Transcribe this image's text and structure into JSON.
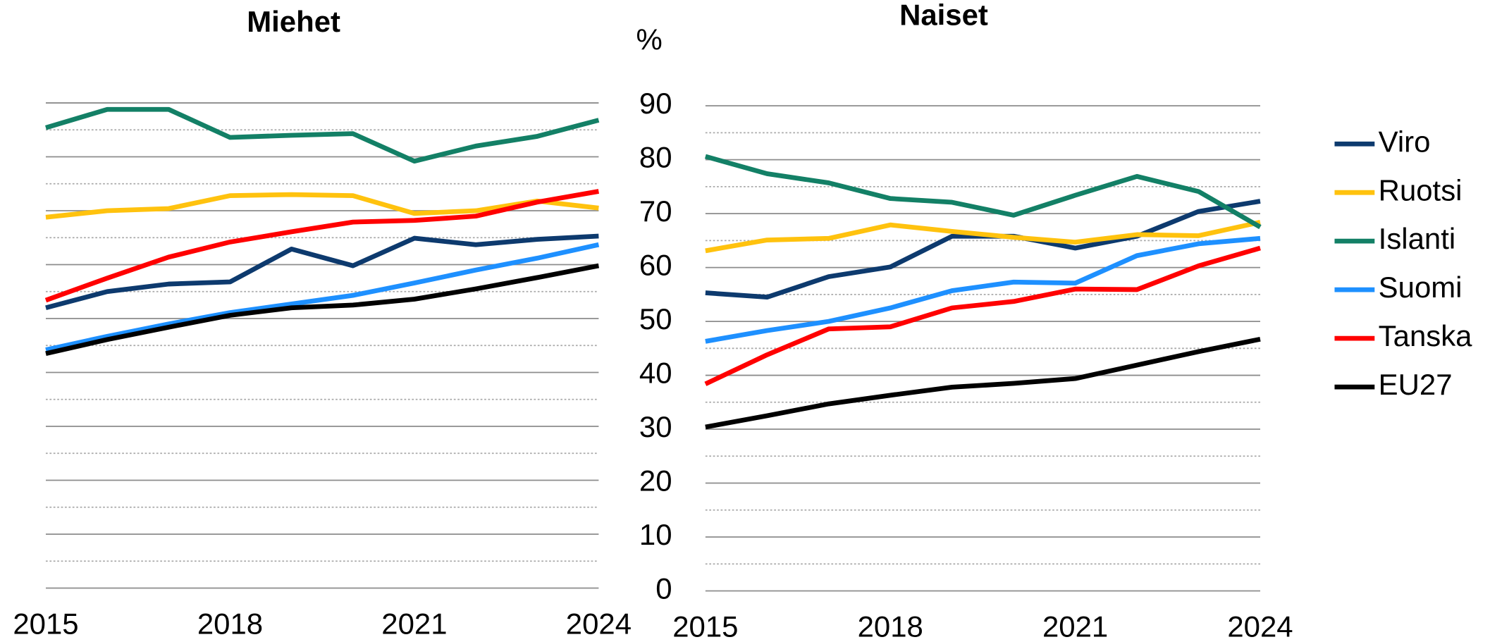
{
  "chart_data": [
    {
      "type": "line",
      "title": "Miehet",
      "x": [
        2015,
        2016,
        2017,
        2018,
        2019,
        2020,
        2021,
        2022,
        2023,
        2024
      ],
      "xlim": [
        2015,
        2024
      ],
      "xticks": [
        2015,
        2018,
        2021,
        2024
      ],
      "ylim": [
        0,
        90
      ],
      "yticks": [
        0,
        10,
        20,
        30,
        40,
        50,
        60,
        70,
        80,
        90
      ],
      "ytick_labels": false,
      "grid": true,
      "series": [
        {
          "name": "Viro",
          "color": "#0d3a6e",
          "values": [
            52.0,
            55.0,
            56.4,
            56.8,
            62.9,
            59.8,
            64.9,
            63.7,
            64.7,
            65.3
          ]
        },
        {
          "name": "Ruotsi",
          "color": "#ffc20e",
          "values": [
            68.8,
            70.0,
            70.4,
            72.8,
            73.0,
            72.8,
            69.5,
            70.0,
            71.8,
            70.5
          ]
        },
        {
          "name": "Islanti",
          "color": "#138066",
          "values": [
            85.4,
            88.8,
            88.8,
            83.6,
            84.0,
            84.3,
            79.2,
            82.0,
            83.8,
            86.8
          ]
        },
        {
          "name": "Suomi",
          "color": "#1e90ff",
          "values": [
            44.2,
            46.7,
            49.0,
            51.1,
            52.7,
            54.3,
            56.6,
            59.0,
            61.2,
            63.7
          ]
        },
        {
          "name": "Tanska",
          "color": "#ff0000",
          "values": [
            53.4,
            57.5,
            61.4,
            64.2,
            66.1,
            67.9,
            68.2,
            69.0,
            71.6,
            73.6
          ]
        },
        {
          "name": "EU27",
          "color": "#000000",
          "values": [
            43.5,
            46.1,
            48.4,
            50.6,
            52.0,
            52.5,
            53.6,
            55.5,
            57.6,
            59.8
          ]
        }
      ]
    },
    {
      "type": "line",
      "title": "Naiset",
      "ylabel": "%",
      "x": [
        2015,
        2016,
        2017,
        2018,
        2019,
        2020,
        2021,
        2022,
        2023,
        2024
      ],
      "xlim": [
        2015,
        2024
      ],
      "xticks": [
        2015,
        2018,
        2021,
        2024
      ],
      "ylim": [
        0,
        90
      ],
      "yticks": [
        0,
        10,
        20,
        30,
        40,
        50,
        60,
        70,
        80,
        90
      ],
      "ytick_labels": true,
      "grid": true,
      "legend": "right",
      "series": [
        {
          "name": "Viro",
          "color": "#0d3a6e",
          "values": [
            55.3,
            54.5,
            58.3,
            60.1,
            65.8,
            65.8,
            63.6,
            65.8,
            70.4,
            72.3
          ]
        },
        {
          "name": "Ruotsi",
          "color": "#ffc20e",
          "values": [
            63.1,
            65.1,
            65.4,
            67.9,
            66.7,
            65.6,
            64.7,
            66.1,
            65.9,
            68.4
          ]
        },
        {
          "name": "Islanti",
          "color": "#138066",
          "values": [
            80.6,
            77.4,
            75.7,
            72.8,
            72.1,
            69.7,
            73.4,
            76.9,
            74.1,
            67.5
          ]
        },
        {
          "name": "Suomi",
          "color": "#1e90ff",
          "values": [
            46.3,
            48.3,
            50.0,
            52.5,
            55.7,
            57.3,
            57.1,
            62.2,
            64.4,
            65.4
          ]
        },
        {
          "name": "Tanska",
          "color": "#ff0000",
          "values": [
            38.4,
            43.8,
            48.6,
            49.0,
            52.5,
            53.7,
            56.0,
            55.9,
            60.3,
            63.6
          ]
        },
        {
          "name": "EU27",
          "color": "#000000",
          "values": [
            30.4,
            32.5,
            34.7,
            36.3,
            37.8,
            38.5,
            39.4,
            41.9,
            44.4,
            46.7
          ]
        }
      ]
    }
  ]
}
